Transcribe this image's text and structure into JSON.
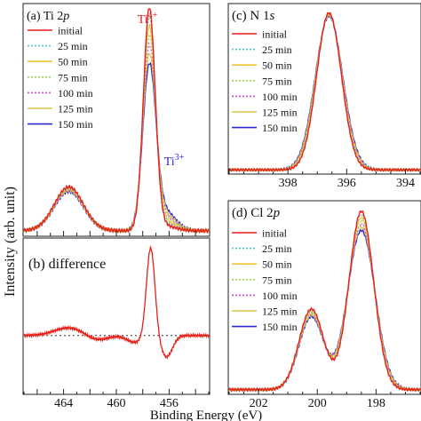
{
  "figure": {
    "ylabel": "Intensity (arb. unit)",
    "xlabel": "Binding Energy (eV)"
  },
  "legend_entries": [
    {
      "label": "initial",
      "color": "#e8201a",
      "dash": "solid"
    },
    {
      "label": "25 min",
      "color": "#4fc7c9",
      "dash": "dotted"
    },
    {
      "label": "50 min",
      "color": "#f0c430",
      "dash": "solid"
    },
    {
      "label": "75 min",
      "color": "#9ad34a",
      "dash": "dotted"
    },
    {
      "label": "100 min",
      "color": "#d04ad8",
      "dash": "dotted"
    },
    {
      "label": "125 min",
      "color": "#d8c44a",
      "dash": "solid"
    },
    {
      "label": "150 min",
      "color": "#2a2ad8",
      "dash": "solid"
    }
  ],
  "chart_data": [
    {
      "id": "ti2p",
      "type": "line",
      "title": "(a) Ti 2p",
      "title_parts": {
        "pre": "(a) Ti 2",
        "italic": "p"
      },
      "xlim": [
        467,
        453
      ],
      "ylim": [
        0,
        1
      ],
      "grid": false,
      "legend_placement": "top-left",
      "annotations": [
        {
          "text": "Ti",
          "sup": "4+",
          "color": "#e8201a",
          "x": 457.4,
          "y": 0.97
        },
        {
          "text": "Ti",
          "sup": "3+",
          "color": "#2a2ad8",
          "x": 455.4,
          "y": 0.36
        }
      ],
      "peaks": [
        {
          "center": 463.6,
          "width": 1.1,
          "initial": 0.19,
          "final": 0.17
        },
        {
          "center": 457.5,
          "width": 0.45,
          "initial": 0.96,
          "final": 0.7
        },
        {
          "center": 456.3,
          "width": 0.8,
          "initial": 0.02,
          "final": 0.08
        }
      ],
      "series": [
        {
          "legend": 0,
          "peak_scale": 1.0
        },
        {
          "legend": 1,
          "peak_scale": 0.93
        },
        {
          "legend": 2,
          "peak_scale": 0.88
        },
        {
          "legend": 3,
          "peak_scale": 0.84
        },
        {
          "legend": 4,
          "peak_scale": 0.8
        },
        {
          "legend": 5,
          "peak_scale": 0.77
        },
        {
          "legend": 6,
          "peak_scale": 0.74
        }
      ]
    },
    {
      "id": "diff",
      "type": "line",
      "title": "(b) difference",
      "xlim": [
        467,
        453
      ],
      "ylim": [
        -0.6,
        1.0
      ],
      "xticks": [
        464,
        460,
        456
      ],
      "baseline": 0,
      "series": [
        {
          "name": "",
          "color": "#e8201a"
        }
      ]
    },
    {
      "id": "n1s",
      "type": "line",
      "title": "(c) N 1s",
      "title_parts": {
        "pre": "(c) N 1",
        "italic": "s"
      },
      "xlim": [
        400,
        393.5
      ],
      "ylim": [
        0,
        1
      ],
      "xticks": [
        398,
        396,
        394
      ],
      "legend_placement": "top-left",
      "peaks": [
        {
          "center": 396.6,
          "width": 0.42,
          "initial": 0.93,
          "final": 0.91
        }
      ],
      "series": [
        {
          "legend": 0,
          "peak_scale": 1.0
        },
        {
          "legend": 1,
          "peak_scale": 0.99
        },
        {
          "legend": 2,
          "peak_scale": 0.99
        },
        {
          "legend": 3,
          "peak_scale": 0.98
        },
        {
          "legend": 4,
          "peak_scale": 0.98
        },
        {
          "legend": 5,
          "peak_scale": 0.97
        },
        {
          "legend": 6,
          "peak_scale": 0.97
        }
      ]
    },
    {
      "id": "cl2p",
      "type": "line",
      "title": "(d) Cl 2p",
      "title_parts": {
        "pre": "(d) Cl 2",
        "italic": "p"
      },
      "xlim": [
        203,
        196.5
      ],
      "ylim": [
        0,
        1
      ],
      "xticks": [
        202,
        200,
        198
      ],
      "legend_placement": "top-left",
      "peaks": [
        {
          "center": 200.2,
          "width": 0.42,
          "initial": 0.42,
          "final": 0.38
        },
        {
          "center": 198.5,
          "width": 0.42,
          "initial": 0.93,
          "final": 0.83
        }
      ],
      "series": [
        {
          "legend": 0,
          "peak_scale": 1.0
        },
        {
          "legend": 1,
          "peak_scale": 0.97
        },
        {
          "legend": 2,
          "peak_scale": 0.95
        },
        {
          "legend": 3,
          "peak_scale": 0.93
        },
        {
          "legend": 4,
          "peak_scale": 0.91
        },
        {
          "legend": 5,
          "peak_scale": 0.9
        },
        {
          "legend": 6,
          "peak_scale": 0.88
        }
      ]
    }
  ]
}
